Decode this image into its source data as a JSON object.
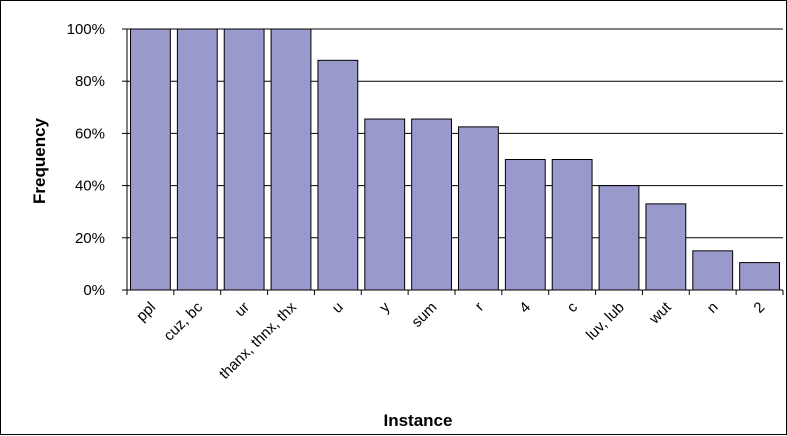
{
  "chart_data": {
    "type": "bar",
    "title": "",
    "xlabel": "Instance",
    "ylabel": "Frequency",
    "categories": [
      "ppl",
      "cuz, bc",
      "ur",
      "thanx, thnx, thx",
      "u",
      "y",
      "sum",
      "r",
      "4",
      "c",
      "luv, lub",
      "wut",
      "n",
      "2"
    ],
    "values": [
      100,
      100,
      100,
      100,
      88,
      65.5,
      65.5,
      62.5,
      50,
      50,
      40,
      33,
      15,
      10.5
    ],
    "ylim": [
      0,
      100
    ],
    "yticks": [
      "0%",
      "20%",
      "40%",
      "60%",
      "80%",
      "100%"
    ],
    "grid": true,
    "legend": "none",
    "colors": {
      "bar_fill": "#9999cc",
      "bar_stroke": "#000000",
      "grid": "#000000"
    }
  }
}
